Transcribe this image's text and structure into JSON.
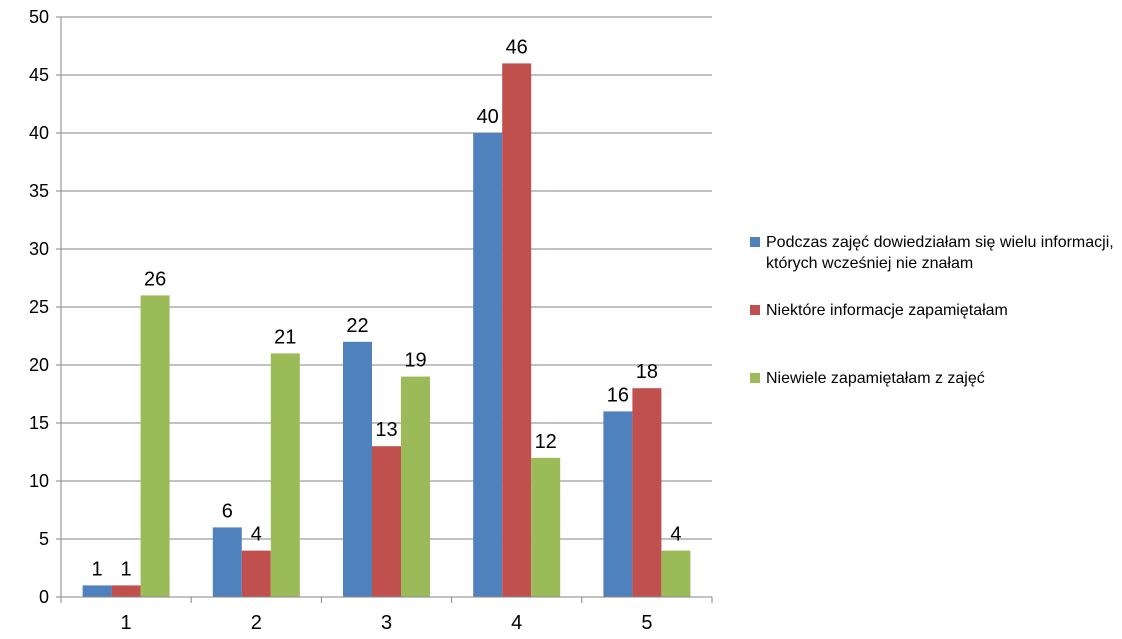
{
  "chart_data": {
    "type": "bar",
    "categories": [
      "1",
      "2",
      "3",
      "4",
      "5"
    ],
    "series": [
      {
        "name": "Podczas zajęć dowiedziałam się wielu informacji, których wcześniej nie znałam",
        "color": "#4F81BD",
        "values": [
          1,
          6,
          22,
          40,
          16
        ]
      },
      {
        "name": "Niektóre informacje zapamiętałam",
        "color": "#C0504D",
        "values": [
          1,
          4,
          13,
          46,
          18
        ]
      },
      {
        "name": "Niewiele zapamiętałam z zajęć",
        "color": "#9BBB59",
        "values": [
          26,
          21,
          19,
          12,
          4
        ]
      }
    ],
    "ylim": [
      0,
      50
    ],
    "yticks": [
      0,
      5,
      10,
      15,
      20,
      25,
      30,
      35,
      40,
      45,
      50
    ],
    "grid": true,
    "data_labels": true,
    "legend_position": "right",
    "title": "",
    "xlabel": "",
    "ylabel": ""
  }
}
